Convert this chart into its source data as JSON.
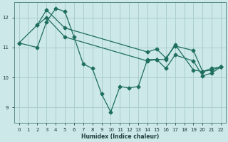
{
  "xlabel": "Humidex (Indice chaleur)",
  "bg_color": "#cce8e8",
  "grid_color": "#aacece",
  "line_color": "#1e6e5e",
  "xlim": [
    -0.5,
    22.5
  ],
  "ylim": [
    8.5,
    12.5
  ],
  "yticks": [
    9,
    10,
    11,
    12
  ],
  "xticks": [
    0,
    1,
    2,
    3,
    4,
    5,
    6,
    7,
    8,
    9,
    10,
    11,
    12,
    13,
    14,
    15,
    16,
    17,
    18,
    19,
    20,
    21,
    22
  ],
  "line1_x": [
    0,
    2,
    3,
    4,
    5,
    6,
    7,
    8,
    9,
    10,
    11,
    12,
    13,
    14,
    15,
    16,
    17,
    19,
    20,
    21,
    22
  ],
  "line1_y": [
    11.15,
    11.0,
    11.85,
    12.3,
    12.2,
    11.35,
    10.45,
    10.3,
    9.45,
    8.85,
    9.7,
    9.65,
    9.7,
    10.6,
    10.6,
    10.6,
    11.1,
    10.25,
    10.2,
    10.25,
    10.35
  ],
  "line2_x": [
    2,
    3,
    5,
    14,
    15,
    16,
    17,
    19,
    20,
    21,
    22
  ],
  "line2_y": [
    11.75,
    12.25,
    11.65,
    10.85,
    10.95,
    10.65,
    11.05,
    10.9,
    10.2,
    10.3,
    10.35
  ],
  "line3_x": [
    0,
    2,
    3,
    5,
    14,
    15,
    16,
    17,
    19,
    20,
    21,
    22
  ],
  "line3_y": [
    11.15,
    11.75,
    12.0,
    11.35,
    10.55,
    10.6,
    10.3,
    10.75,
    10.55,
    10.05,
    10.15,
    10.35
  ]
}
